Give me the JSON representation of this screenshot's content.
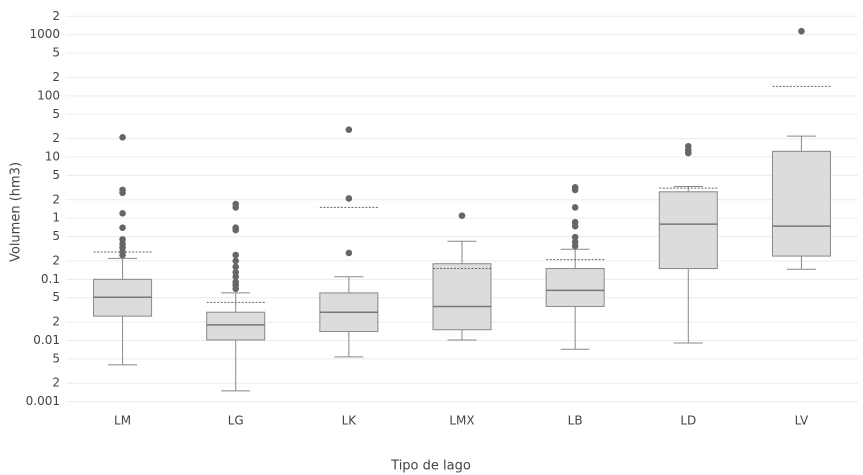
{
  "chart_data": {
    "type": "box",
    "x_label": "Tipo de lago",
    "y_label": "Volumen (hm3)",
    "log_y": true,
    "grid": true,
    "color": "#dcdcdc",
    "categories": [
      "LM",
      "LG",
      "LK",
      "LMX",
      "LB",
      "LD",
      "LV"
    ],
    "boxes": [
      {
        "low": 0.004,
        "q1": 0.025,
        "median": 0.051,
        "q3": 0.1,
        "high": 0.22,
        "mean": 0.28,
        "outliers": [
          21,
          2.9,
          2.6,
          1.2,
          0.7,
          0.45,
          0.38,
          0.33,
          0.28,
          0.25
        ]
      },
      {
        "low": 0.0015,
        "q1": 0.0102,
        "median": 0.018,
        "q3": 0.029,
        "high": 0.06,
        "mean": 0.042,
        "outliers": [
          1.7,
          1.5,
          0.7,
          0.64,
          0.25,
          0.2,
          0.16,
          0.13,
          0.11,
          0.09,
          0.08,
          0.07
        ]
      },
      {
        "low": 0.0054,
        "q1": 0.014,
        "median": 0.029,
        "q3": 0.06,
        "high": 0.11,
        "mean": 1.5,
        "outliers": [
          28,
          2.1,
          0.27
        ]
      },
      {
        "low": 0.0102,
        "q1": 0.015,
        "median": 0.036,
        "q3": 0.18,
        "high": 0.42,
        "mean": 0.15,
        "outliers": [
          1.1
        ]
      },
      {
        "low": 0.0072,
        "q1": 0.036,
        "median": 0.066,
        "q3": 0.15,
        "high": 0.31,
        "mean": 0.21,
        "outliers": [
          3.2,
          2.9,
          1.5,
          0.86,
          0.74,
          0.49,
          0.41,
          0.35
        ]
      },
      {
        "low": 0.0091,
        "q1": 0.15,
        "median": 0.8,
        "q3": 2.7,
        "high": 3.3,
        "mean": 3.1,
        "outliers": [
          15,
          13,
          11.6
        ]
      },
      {
        "low": 0.146,
        "q1": 0.24,
        "median": 0.74,
        "q3": 12.4,
        "high": 22,
        "mean": 143,
        "outliers": [
          1140
        ]
      }
    ],
    "ylim": [
      0.00073,
      2100
    ],
    "yticks": [
      0.001,
      {
        "value": 0.002,
        "label": "2"
      },
      {
        "value": 0.005,
        "label": "5"
      },
      0.01,
      {
        "value": 0.02,
        "label": "2"
      },
      {
        "value": 0.05,
        "label": "5"
      },
      0.1,
      {
        "value": 0.2,
        "label": "2"
      },
      {
        "value": 0.5,
        "label": "5"
      },
      1,
      {
        "value": 2,
        "label": "2"
      },
      {
        "value": 5,
        "label": "5"
      },
      10,
      {
        "value": 20,
        "label": "2"
      },
      {
        "value": 50,
        "label": "5"
      },
      100,
      {
        "value": 200,
        "label": "2"
      },
      {
        "value": 500,
        "label": "5"
      },
      1000,
      {
        "value": 2000,
        "label": "2"
      }
    ]
  }
}
